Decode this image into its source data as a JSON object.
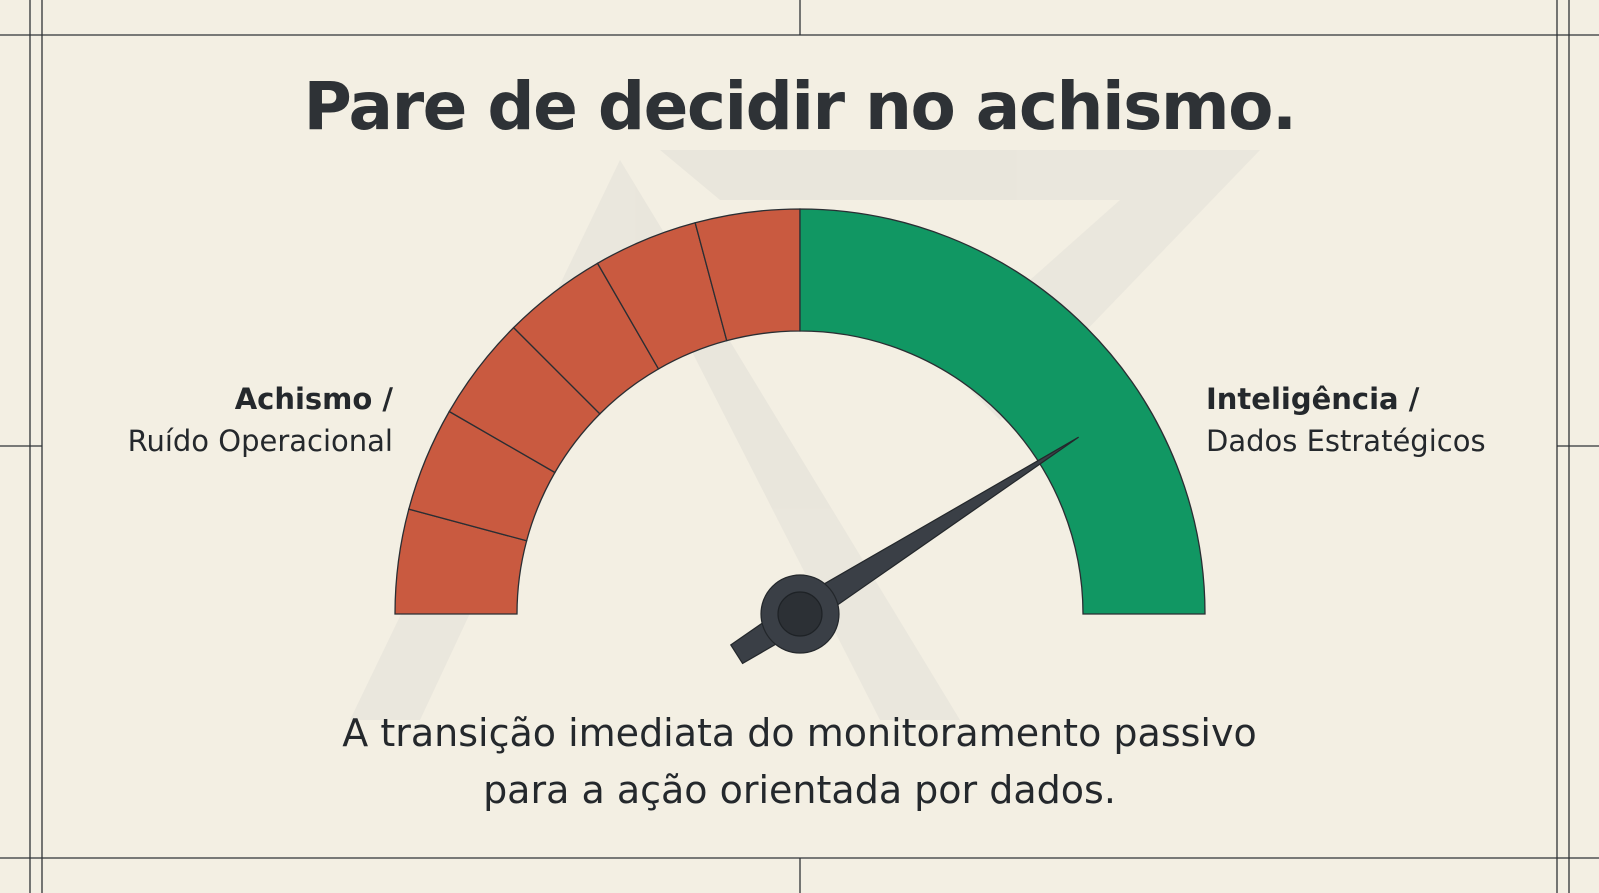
{
  "title": "Pare de decidir no achismo.",
  "labels": {
    "left": {
      "strong": "Achismo /",
      "light": "Ruído Operacional"
    },
    "right": {
      "strong": "Inteligência /",
      "light": "Dados Estratégicos"
    }
  },
  "subtitle": {
    "line1": "A transição imediata do monitoramento passivo",
    "line2": "para a ação orientada por dados."
  },
  "gauge": {
    "red_segments": 6,
    "needle_level": 0.82
  },
  "colors": {
    "background": "#f3efe3",
    "red_zone": "#c95a40",
    "green_zone": "#119763",
    "needle": "#3a3f46",
    "text": "#2b2f33",
    "frame_line": "#2f3337"
  }
}
